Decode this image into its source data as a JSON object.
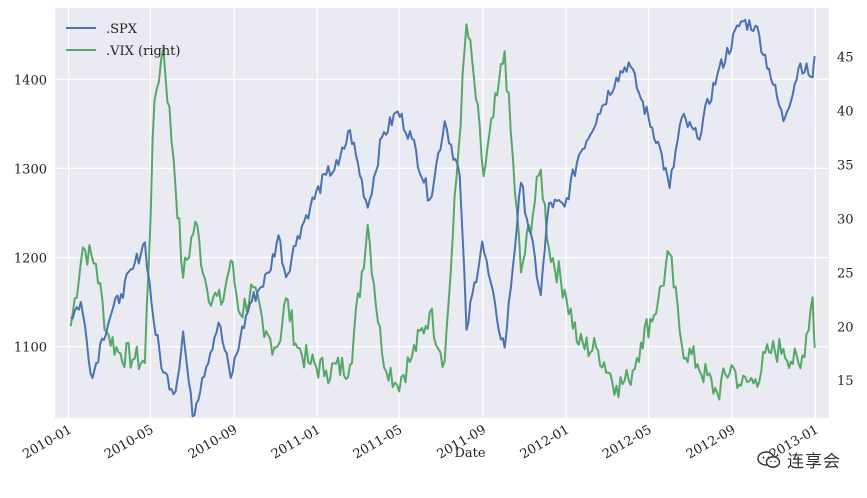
{
  "chart_data": {
    "type": "line",
    "xlabel": "Date",
    "x_range": [
      "2010-01-01",
      "2013-01-01"
    ],
    "x_tick_labels": [
      "2010-01",
      "2010-05",
      "2010-09",
      "2011-01",
      "2011-05",
      "2011-09",
      "2012-01",
      "2012-05",
      "2012-09",
      "2013-01"
    ],
    "y_left": {
      "range": [
        1020,
        1480
      ],
      "ticks": [
        1100,
        1200,
        1300,
        1400
      ]
    },
    "y_right": {
      "range": [
        11.5,
        49.5
      ],
      "ticks": [
        15,
        20,
        25,
        30,
        35,
        40,
        45
      ]
    },
    "grid": true,
    "legend_position": "top-left",
    "series": [
      {
        "name": ".SPX",
        "axis": "left",
        "color": "#4c72b0",
        "points": [
          [
            "2010-01-04",
            1133
          ],
          [
            "2010-01-19",
            1150
          ],
          [
            "2010-02-05",
            1065
          ],
          [
            "2010-02-19",
            1109
          ],
          [
            "2010-03-05",
            1138
          ],
          [
            "2010-03-19",
            1159
          ],
          [
            "2010-04-05",
            1187
          ],
          [
            "2010-04-23",
            1217
          ],
          [
            "2010-05-06",
            1128
          ],
          [
            "2010-05-20",
            1071
          ],
          [
            "2010-06-07",
            1050
          ],
          [
            "2010-06-18",
            1117
          ],
          [
            "2010-07-02",
            1022
          ],
          [
            "2010-07-16",
            1065
          ],
          [
            "2010-08-09",
            1127
          ],
          [
            "2010-08-27",
            1065
          ],
          [
            "2010-09-10",
            1110
          ],
          [
            "2010-09-24",
            1148
          ],
          [
            "2010-10-08",
            1165
          ],
          [
            "2010-10-22",
            1183
          ],
          [
            "2010-11-05",
            1225
          ],
          [
            "2010-11-16",
            1178
          ],
          [
            "2010-12-03",
            1224
          ],
          [
            "2010-12-22",
            1258
          ],
          [
            "2011-01-14",
            1293
          ],
          [
            "2011-02-01",
            1304
          ],
          [
            "2011-02-18",
            1343
          ],
          [
            "2011-03-16",
            1256
          ],
          [
            "2011-04-06",
            1335
          ],
          [
            "2011-04-29",
            1364
          ],
          [
            "2011-05-20",
            1333
          ],
          [
            "2011-06-15",
            1265
          ],
          [
            "2011-07-07",
            1353
          ],
          [
            "2011-07-29",
            1292
          ],
          [
            "2011-08-08",
            1119
          ],
          [
            "2011-08-31",
            1218
          ],
          [
            "2011-09-22",
            1129
          ],
          [
            "2011-10-03",
            1099
          ],
          [
            "2011-10-27",
            1284
          ],
          [
            "2011-11-25",
            1158
          ],
          [
            "2011-12-07",
            1261
          ],
          [
            "2011-12-30",
            1257
          ],
          [
            "2012-01-20",
            1315
          ],
          [
            "2012-02-17",
            1361
          ],
          [
            "2012-03-15",
            1402
          ],
          [
            "2012-04-02",
            1419
          ],
          [
            "2012-04-20",
            1378
          ],
          [
            "2012-05-15",
            1330
          ],
          [
            "2012-06-01",
            1278
          ],
          [
            "2012-06-19",
            1357
          ],
          [
            "2012-07-12",
            1334
          ],
          [
            "2012-08-10",
            1405
          ],
          [
            "2012-09-14",
            1465
          ],
          [
            "2012-10-05",
            1460
          ],
          [
            "2012-10-25",
            1412
          ],
          [
            "2012-11-15",
            1353
          ],
          [
            "2012-12-10",
            1418
          ],
          [
            "2012-12-28",
            1402
          ],
          [
            "2012-12-31",
            1426
          ]
        ]
      },
      {
        "name": ".VIX (right)",
        "axis": "right",
        "color": "#55a868",
        "points": [
          [
            "2010-01-04",
            20.0
          ],
          [
            "2010-01-22",
            27.3
          ],
          [
            "2010-02-10",
            25.8
          ],
          [
            "2010-02-26",
            19.5
          ],
          [
            "2010-03-15",
            17.6
          ],
          [
            "2010-04-08",
            17.0
          ],
          [
            "2010-04-23",
            16.6
          ],
          [
            "2010-05-07",
            40.9
          ],
          [
            "2010-05-20",
            45.8
          ],
          [
            "2010-06-04",
            35.5
          ],
          [
            "2010-06-18",
            24.5
          ],
          [
            "2010-07-06",
            29.7
          ],
          [
            "2010-07-23",
            23.5
          ],
          [
            "2010-08-13",
            22.0
          ],
          [
            "2010-08-27",
            26.1
          ],
          [
            "2010-09-10",
            21.1
          ],
          [
            "2010-09-29",
            23.6
          ],
          [
            "2010-10-15",
            19.0
          ],
          [
            "2010-11-05",
            18.3
          ],
          [
            "2010-11-16",
            22.6
          ],
          [
            "2010-12-03",
            18.0
          ],
          [
            "2010-12-22",
            16.5
          ],
          [
            "2011-01-14",
            15.9
          ],
          [
            "2011-02-18",
            16.4
          ],
          [
            "2011-03-16",
            29.4
          ],
          [
            "2011-04-06",
            17.5
          ],
          [
            "2011-04-28",
            14.6
          ],
          [
            "2011-05-20",
            17.2
          ],
          [
            "2011-06-15",
            21.3
          ],
          [
            "2011-07-07",
            16.8
          ],
          [
            "2011-08-08",
            48.0
          ],
          [
            "2011-08-19",
            43.0
          ],
          [
            "2011-09-02",
            33.9
          ],
          [
            "2011-09-22",
            41.4
          ],
          [
            "2011-10-03",
            45.5
          ],
          [
            "2011-10-27",
            25.0
          ],
          [
            "2011-11-25",
            34.5
          ],
          [
            "2011-12-07",
            27.2
          ],
          [
            "2011-12-30",
            23.4
          ],
          [
            "2012-01-20",
            18.3
          ],
          [
            "2012-02-17",
            17.8
          ],
          [
            "2012-03-15",
            14.5
          ],
          [
            "2012-04-02",
            15.0
          ],
          [
            "2012-04-20",
            18.5
          ],
          [
            "2012-05-15",
            22.3
          ],
          [
            "2012-06-01",
            26.7
          ],
          [
            "2012-06-19",
            18.3
          ],
          [
            "2012-07-12",
            16.5
          ],
          [
            "2012-08-10",
            13.8
          ],
          [
            "2012-08-31",
            16.4
          ],
          [
            "2012-09-14",
            14.5
          ],
          [
            "2012-10-05",
            15.1
          ],
          [
            "2012-10-25",
            17.6
          ],
          [
            "2012-11-15",
            17.9
          ],
          [
            "2012-12-10",
            16.1
          ],
          [
            "2012-12-28",
            22.7
          ],
          [
            "2012-12-31",
            18.0
          ]
        ]
      }
    ]
  },
  "watermark": {
    "text": "连享会",
    "icon": "wechat-icon"
  }
}
